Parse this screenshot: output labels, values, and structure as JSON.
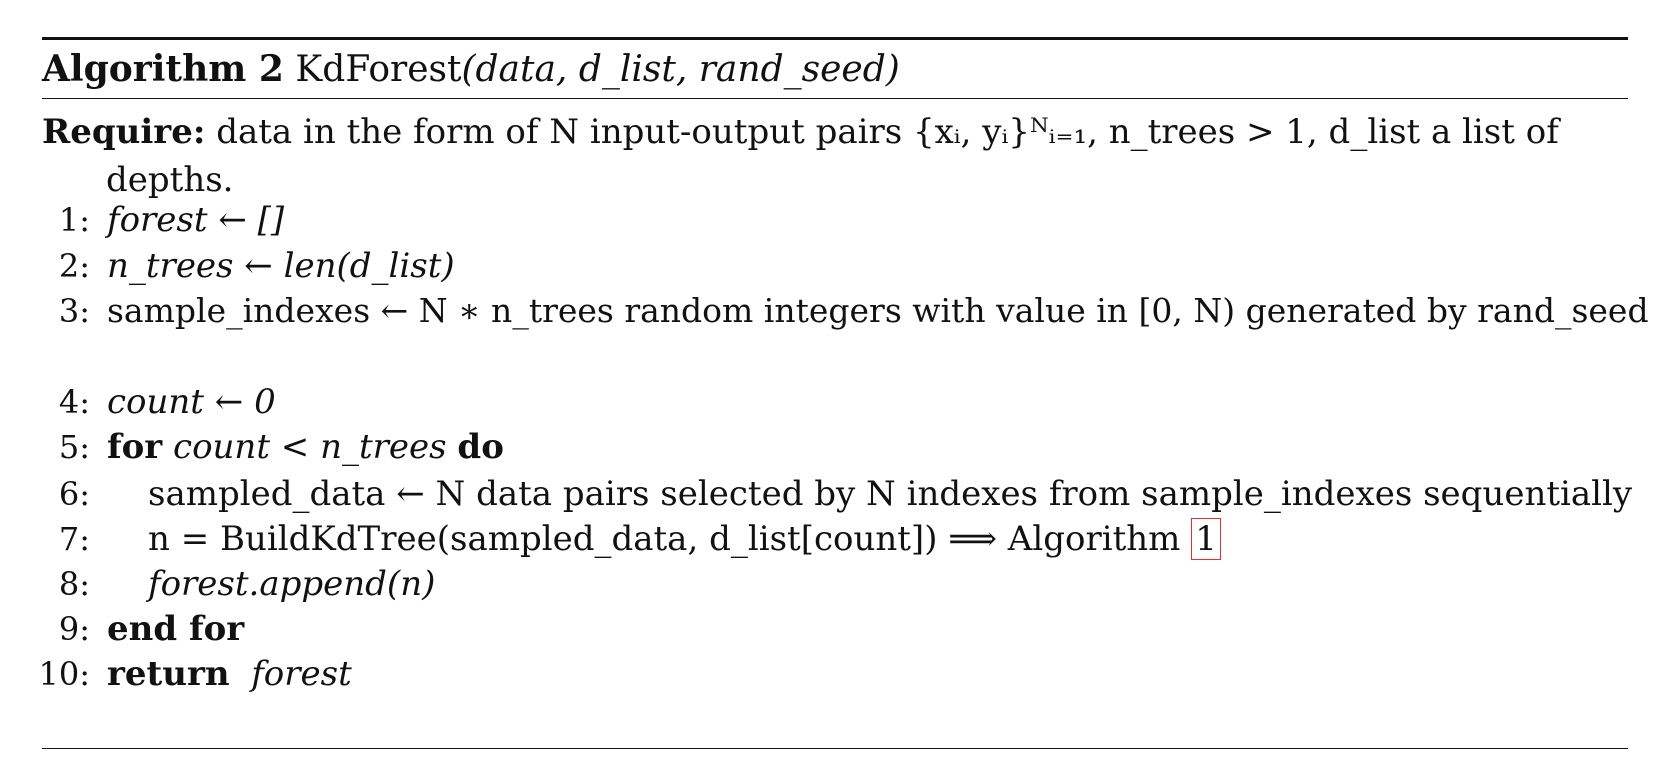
{
  "header": {
    "label": "Algorithm 2",
    "name": "KdForest",
    "args": "(data, d_list, rand_seed)"
  },
  "require": {
    "keyword": "Require:",
    "line1": " data in the form of N input-output pairs {xᵢ, yᵢ}ᴺᵢ₌₁, n_trees > 1, d_list a list of",
    "line2": "depths."
  },
  "lines": [
    {
      "num": "1:",
      "text": "forest ← []"
    },
    {
      "num": "2:",
      "text": "n_trees ← len(d_list)"
    },
    {
      "num": "3:",
      "text": "sample_indexes ← N ∗ n_trees random integers with value in [0, N) generated by rand_seed"
    },
    {
      "num": "4:",
      "text": "count ← 0"
    },
    {
      "num": "5:",
      "kw1": "for",
      "text": " count < n_trees ",
      "kw2": "do"
    },
    {
      "num": "6:",
      "text": "sampled_data ← N data pairs selected by N indexes from sample_indexes sequentially"
    },
    {
      "num": "7:",
      "text": "n = BuildKdTree(sampled_data, d_list[count]) ⟹ Algorithm ",
      "ref": "1"
    },
    {
      "num": "8:",
      "text": "forest.append(n)"
    },
    {
      "num": "9:",
      "kw1": "end for"
    },
    {
      "num": "10:",
      "kw1": "return",
      "text": "  forest"
    }
  ]
}
